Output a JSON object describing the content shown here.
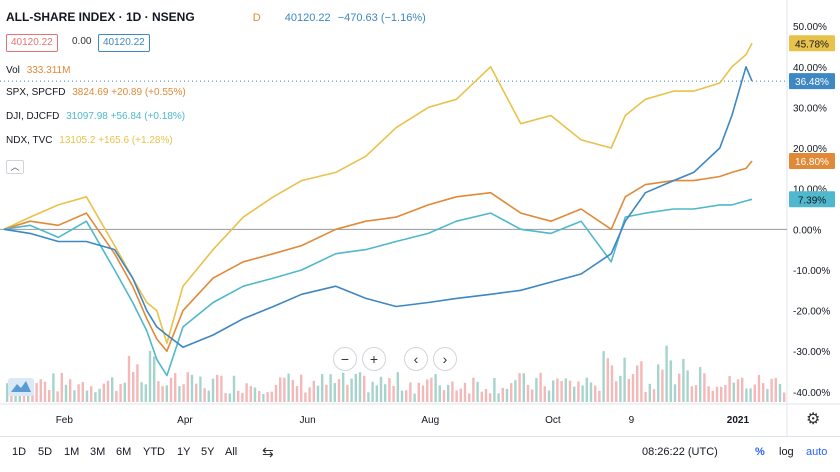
{
  "header": {
    "title": "ALL-SHARE INDEX · 1D · NSENG",
    "price": "40120.22",
    "change": "−470.63 (−1.16%)",
    "badge": "D",
    "box_left": "40120.22",
    "box_mid": "0.00",
    "box_right": "40120.22"
  },
  "legend": {
    "vol_label": "Vol",
    "vol_value": "333.311M",
    "spx_label": "SPX, SPCFD",
    "spx_value": "3824.69 +20.89 (+0.55%)",
    "dji_label": "DJI, DJCFD",
    "dji_value": "31097.98 +56.84 (+0.18%)",
    "ndx_label": "NDX, TVC",
    "ndx_value": "13105.2 +165.6 (+1.28%)"
  },
  "toolbar": {
    "ranges": [
      "1D",
      "5D",
      "1M",
      "3M",
      "6M",
      "YTD",
      "1Y",
      "5Y",
      "All"
    ],
    "time": "08:26:22 (UTC)",
    "percent": "%",
    "log": "log",
    "auto": "auto"
  },
  "colors": {
    "main": "#3d87c2",
    "spx": "#e08a37",
    "dji": "#4fb8cc",
    "ndx": "#e8c24a",
    "vol_up": "#88c5bb",
    "vol_down": "#f0a0a0"
  },
  "chart_data": {
    "type": "line",
    "x_ticks": [
      "Feb",
      "Apr",
      "Jun",
      "Aug",
      "Oct",
      "9",
      "2021"
    ],
    "y_ticks": [
      "50.00%",
      "40.00%",
      "30.00%",
      "20.00%",
      "10.00%",
      "0.00%",
      "-10.00%",
      "-20.00%",
      "-30.00%",
      "-40.00%"
    ],
    "ylim": [
      -42,
      52
    ],
    "x": [
      "2020-01-02",
      "2020-01-15",
      "2020-01-29",
      "2020-02-12",
      "2020-02-26",
      "2020-03-06",
      "2020-03-13",
      "2020-03-18",
      "2020-03-23",
      "2020-03-31",
      "2020-04-15",
      "2020-04-30",
      "2020-05-15",
      "2020-05-29",
      "2020-06-15",
      "2020-06-30",
      "2020-07-15",
      "2020-07-31",
      "2020-08-14",
      "2020-08-31",
      "2020-09-15",
      "2020-09-30",
      "2020-10-15",
      "2020-10-30",
      "2020-11-06",
      "2020-11-16",
      "2020-11-30",
      "2020-12-10",
      "2020-12-23",
      "2020-12-29",
      "2021-01-05",
      "2021-01-08"
    ],
    "series": [
      {
        "name": "ALL-SHARE INDEX",
        "values": [
          0,
          -1,
          -3,
          -3,
          -5,
          -12,
          -20,
          -24,
          -26,
          -29,
          -26,
          -22,
          -19,
          -16,
          -14,
          -17,
          -19,
          -18,
          -17,
          -16,
          -15,
          -13,
          -11,
          -6,
          2,
          9,
          12,
          14,
          20,
          28,
          40,
          36.48
        ]
      },
      {
        "name": "SPX",
        "values": [
          0,
          2,
          1,
          4,
          -6,
          -14,
          -22,
          -27,
          -30,
          -20,
          -12,
          -8,
          -6,
          -4,
          0,
          2,
          3,
          6,
          8,
          9,
          4,
          2,
          5,
          0,
          8,
          11,
          12,
          12,
          13,
          14,
          15,
          16.8
        ]
      },
      {
        "name": "DJI",
        "values": [
          0,
          1,
          -2,
          2,
          -10,
          -18,
          -25,
          -32,
          -36,
          -24,
          -18,
          -14,
          -12,
          -10,
          -6,
          -5,
          -3,
          -1,
          2,
          4,
          0,
          -1,
          2,
          -8,
          3,
          4,
          5,
          5,
          6,
          6,
          7,
          7.39
        ]
      },
      {
        "name": "NDX",
        "values": [
          0,
          3,
          6,
          8,
          -4,
          -12,
          -18,
          -20,
          -28,
          -14,
          -5,
          3,
          8,
          12,
          14,
          18,
          25,
          30,
          32,
          40,
          26,
          28,
          22,
          20,
          28,
          32,
          34,
          34,
          36,
          40,
          43,
          45.78
        ]
      }
    ],
    "last_labels": [
      "36.48%",
      "16.80%",
      "7.39%",
      "45.78%"
    ]
  }
}
